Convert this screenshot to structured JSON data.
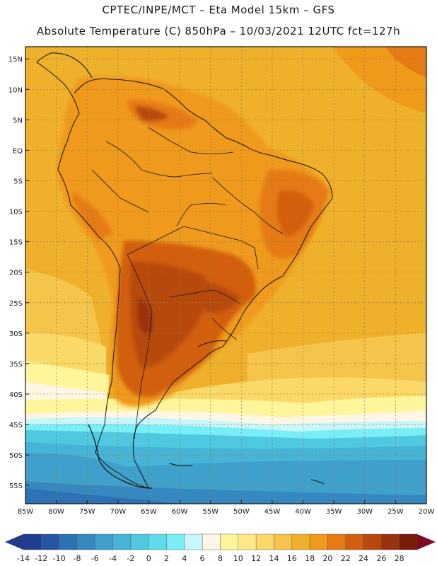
{
  "header": {
    "line1": "CPTEC/INPE/MCT –   Eta Model 15km – GFS",
    "line2": "Absolute Temperature (C) 850hPa – 10/03/2021 12UTC fct=127h"
  },
  "map": {
    "lat_labels": [
      "15N",
      "10N",
      "5N",
      "EQ",
      "5S",
      "10S",
      "15S",
      "20S",
      "25S",
      "30S",
      "35S",
      "40S",
      "45S",
      "50S",
      "55S"
    ],
    "lon_labels": [
      "85W",
      "80W",
      "75W",
      "70W",
      "65W",
      "60W",
      "55W",
      "50W",
      "45W",
      "40W",
      "35W",
      "30W",
      "25W",
      "20W"
    ],
    "lat_values": [
      15,
      10,
      5,
      0,
      -5,
      -10,
      -15,
      -20,
      -25,
      -30,
      -35,
      -40,
      -45,
      -50,
      -55
    ],
    "lon_values": [
      -85,
      -80,
      -75,
      -70,
      -65,
      -60,
      -55,
      -50,
      -45,
      -40,
      -35,
      -30,
      -25,
      -20
    ],
    "extent": {
      "lon_min": -85,
      "lon_max": -20,
      "lat_min": -58,
      "lat_max": 17
    }
  },
  "legend": {
    "labels": [
      "-14",
      "-12",
      "-10",
      "-8",
      "-6",
      "-4",
      "-2",
      "0",
      "2",
      "4",
      "6",
      "8",
      "10",
      "12",
      "14",
      "16",
      "18",
      "20",
      "22",
      "24",
      "26",
      "28"
    ],
    "colors": [
      "#1f3e8f",
      "#2656a3",
      "#2d70b3",
      "#3689c0",
      "#3fa0cc",
      "#45b4d6",
      "#4fc8e0",
      "#5edcea",
      "#79eef7",
      "#c9f6fb",
      "#fff7e6",
      "#fff59a",
      "#fde98a",
      "#fbd968",
      "#f5c44a",
      "#efb12c",
      "#ef9a1a",
      "#e67a14",
      "#d25e10",
      "#b8480e",
      "#9a320d",
      "#7a1c0c"
    ],
    "low_arrow_color": "#233a8a",
    "high_arrow_color": "#7e0a22"
  },
  "palette": {
    "ocean_base": "#efb12c",
    "hot_core": "#b8480e",
    "warm": "#e67a14",
    "cool_band": "#fff59a",
    "cold_band": "#45b4d6",
    "coldest": "#2d70b3"
  }
}
